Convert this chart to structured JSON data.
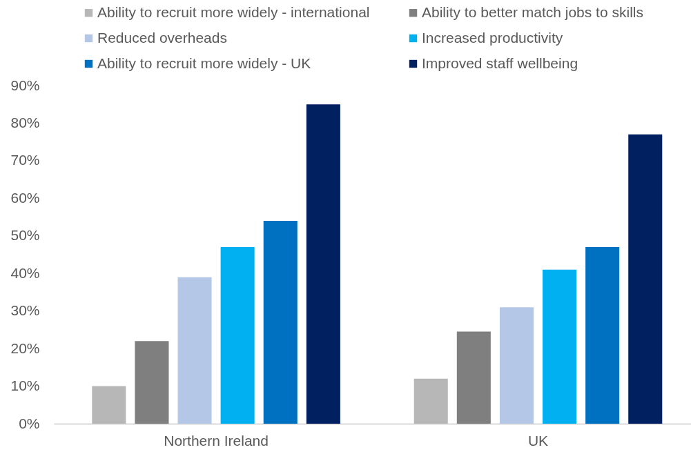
{
  "chart_data": {
    "type": "bar",
    "categories": [
      "Northern Ireland",
      "UK"
    ],
    "series": [
      {
        "name": "Ability to recruit more widely - international",
        "color": "#b7b7b7",
        "values": [
          10,
          12
        ]
      },
      {
        "name": "Ability to better match jobs to skills",
        "color": "#7f7f7f",
        "values": [
          22,
          24.5
        ]
      },
      {
        "name": "Reduced overheads",
        "color": "#b4c7e7",
        "values": [
          39,
          31
        ]
      },
      {
        "name": "Increased productivity",
        "color": "#00b0f0",
        "values": [
          47,
          41
        ]
      },
      {
        "name": "Ability to recruit more widely - UK",
        "color": "#0070c0",
        "values": [
          54,
          47
        ]
      },
      {
        "name": "Improved staff wellbeing",
        "color": "#002060",
        "values": [
          85,
          77
        ]
      }
    ],
    "ylim": [
      0,
      90
    ],
    "yticks": [
      {
        "value": 0,
        "label": "0%"
      },
      {
        "value": 10,
        "label": "10%"
      },
      {
        "value": 20,
        "label": "20%"
      },
      {
        "value": 30,
        "label": "30%"
      },
      {
        "value": 40,
        "label": "40%"
      },
      {
        "value": 50,
        "label": "50%"
      },
      {
        "value": 60,
        "label": "60%"
      },
      {
        "value": 70,
        "label": "70%"
      },
      {
        "value": 80,
        "label": "80%"
      },
      {
        "value": 90,
        "label": "90%"
      }
    ],
    "legend": "top"
  }
}
